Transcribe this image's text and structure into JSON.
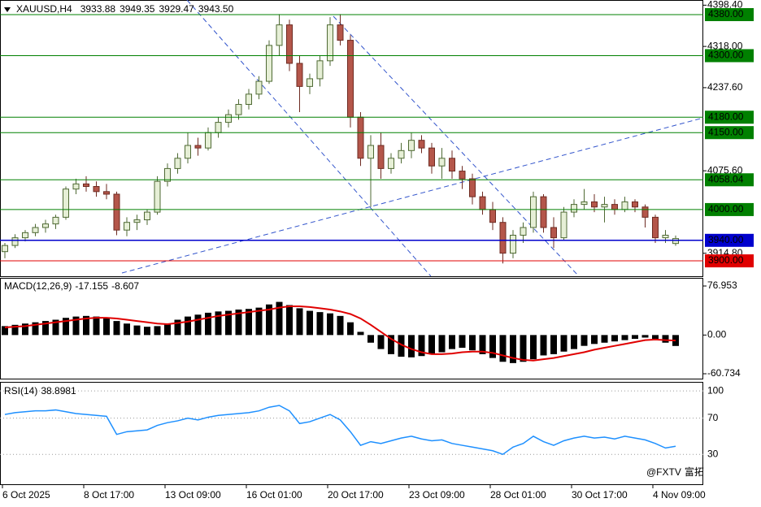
{
  "chart_data": [
    {
      "type": "candlestick",
      "title": "XAUUSD,H4",
      "ohlc_labels": [
        "3933.88",
        "3949.35",
        "3929.47",
        "3943.50"
      ],
      "categories": [
        "6 Oct 2025",
        null,
        null,
        null,
        null,
        null,
        null,
        null,
        "8 Oct 17:00",
        null,
        null,
        null,
        null,
        null,
        null,
        null,
        "13 Oct 09:00",
        null,
        null,
        null,
        null,
        null,
        null,
        null,
        "16 Oct 01:00",
        null,
        null,
        null,
        null,
        null,
        null,
        null,
        "20 Oct 17:00",
        null,
        null,
        null,
        null,
        null,
        null,
        null,
        "23 Oct 09:00",
        null,
        null,
        null,
        null,
        null,
        null,
        null,
        "28 Oct 01:00",
        null,
        null,
        null,
        null,
        null,
        null,
        null,
        "30 Oct 17:00",
        null,
        null,
        null,
        null,
        null,
        null,
        null,
        "4 Nov 09:00",
        null,
        null
      ],
      "open": [
        3918,
        3930,
        3945,
        3955,
        3965,
        3972,
        3985,
        4040,
        4050,
        4045,
        4035,
        4030,
        3960,
        3975,
        3980,
        3995,
        4055,
        4080,
        4100,
        4125,
        4120,
        4150,
        4170,
        4185,
        4205,
        4225,
        4250,
        4320,
        4360,
        4285,
        4240,
        4255,
        4290,
        4360,
        4330,
        4180,
        4100,
        4125,
        4080,
        4100,
        4115,
        4135,
        4120,
        4085,
        4100,
        4075,
        4060,
        4025,
        4000,
        3975,
        3915,
        3950,
        3965,
        4025,
        3965,
        3945,
        3995,
        4010,
        4015,
        4005,
        4010,
        4000,
        4015,
        4005,
        3985,
        3945,
        3933.88
      ],
      "high": [
        3935,
        3952,
        3960,
        3972,
        3980,
        3990,
        4045,
        4060,
        4065,
        4055,
        4050,
        4035,
        3985,
        3990,
        4000,
        4065,
        4090,
        4110,
        4150,
        4140,
        4160,
        4180,
        4195,
        4215,
        4235,
        4260,
        4330,
        4381,
        4370,
        4300,
        4265,
        4300,
        4375,
        4381,
        4340,
        4190,
        4145,
        4150,
        4110,
        4130,
        4150,
        4145,
        4130,
        4120,
        4115,
        4085,
        4070,
        4035,
        4015,
        3985,
        3960,
        3975,
        4035,
        4030,
        3985,
        4005,
        4020,
        4040,
        4030,
        4025,
        4020,
        4025,
        4020,
        4010,
        3990,
        3960,
        3949.35
      ],
      "low": [
        3905,
        3925,
        3938,
        3948,
        3955,
        3962,
        3980,
        4030,
        4035,
        4025,
        4020,
        3950,
        3948,
        3960,
        3970,
        3990,
        4045,
        4070,
        4090,
        4105,
        4115,
        4140,
        4160,
        4175,
        4195,
        4215,
        4245,
        4300,
        4270,
        4190,
        4225,
        4240,
        4280,
        4320,
        4160,
        4085,
        4005,
        4060,
        4070,
        4090,
        4100,
        4110,
        4070,
        4060,
        4060,
        4040,
        4010,
        3990,
        3960,
        3895,
        3905,
        3935,
        3955,
        3955,
        3925,
        3940,
        3985,
        4000,
        3995,
        3975,
        3990,
        3995,
        3995,
        3965,
        3935,
        3935,
        3929.47
      ],
      "close": [
        3930,
        3945,
        3955,
        3965,
        3972,
        3985,
        4040,
        4050,
        4045,
        4035,
        4030,
        3960,
        3975,
        3980,
        3995,
        4055,
        4080,
        4100,
        4125,
        4120,
        4150,
        4170,
        4185,
        4205,
        4225,
        4250,
        4320,
        4360,
        4285,
        4240,
        4255,
        4290,
        4360,
        4330,
        4180,
        4100,
        4125,
        4080,
        4100,
        4115,
        4135,
        4120,
        4085,
        4100,
        4075,
        4060,
        4025,
        4000,
        3975,
        3915,
        3950,
        3965,
        4025,
        3965,
        3945,
        3995,
        4010,
        4015,
        4005,
        4010,
        4000,
        4015,
        4005,
        3985,
        3945,
        3950,
        3943.5
      ],
      "up_color": "#e6efd6",
      "up_stroke": "#4f6a34",
      "down_color": "#b4564a",
      "down_stroke": "#6e2b22",
      "ylim": [
        3870,
        4408.5
      ],
      "yticks": [
        {
          "value": 4398.4,
          "label": "4398.40"
        },
        {
          "value": 4318,
          "label": "4318.00"
        },
        {
          "value": 4237.6,
          "label": "4237.60"
        },
        {
          "value": 4075.6,
          "label": "4075.60"
        },
        {
          "value": 3914.8,
          "label": "3914.80"
        }
      ],
      "price_levels": [
        {
          "value": 4380,
          "label": "4380.00",
          "color": "#008000",
          "text_color": "#000000"
        },
        {
          "value": 4300,
          "label": "4300.00",
          "color": "#008000",
          "text_color": "#000000"
        },
        {
          "value": 4180,
          "label": "4180.00",
          "color": "#008000",
          "text_color": "#000000"
        },
        {
          "value": 4150,
          "label": "4150.00",
          "color": "#008000",
          "text_color": "#000000"
        },
        {
          "value": 4058.04,
          "label": "4058.04",
          "color": "#008000",
          "text_color": "#000000"
        },
        {
          "value": 4000,
          "label": "4000.00",
          "color": "#008000",
          "text_color": "#000000"
        },
        {
          "value": 3940,
          "label": "3940.00",
          "color": "#0000cd",
          "text_color": "#ffffff"
        },
        {
          "value": 3900,
          "label": "3900.00",
          "color": "#e00000",
          "text_color": "#ffffff"
        }
      ],
      "watermark": [
        "@FXTV",
        "富拓"
      ]
    },
    {
      "type": "macd",
      "title": "MACD(12,26,9)",
      "macd": [
        14,
        16,
        18,
        20,
        22,
        24,
        27,
        29,
        30,
        29,
        27,
        22,
        18,
        15,
        13,
        14,
        18,
        24,
        29,
        32,
        35,
        37,
        38,
        40,
        41,
        43,
        48,
        52,
        47,
        42,
        38,
        36,
        34,
        30,
        20,
        5,
        -12,
        -22,
        -30,
        -34,
        -35,
        -33,
        -30,
        -27,
        -22,
        -20,
        -24,
        -30,
        -36,
        -42,
        -44,
        -42,
        -38,
        -32,
        -30,
        -26,
        -22,
        -17,
        -14,
        -12,
        -10,
        -8,
        -6,
        -4,
        -6,
        -12,
        -17.155
      ],
      "signal": [
        12,
        13,
        14,
        16,
        18,
        20,
        22,
        24,
        26,
        27,
        27,
        26,
        24,
        22,
        20,
        18,
        17,
        19,
        21,
        24,
        27,
        30,
        32,
        34,
        36,
        38,
        40,
        43,
        45,
        45,
        44,
        42,
        40,
        37,
        33,
        26,
        16,
        5,
        -6,
        -15,
        -22,
        -27,
        -30,
        -30,
        -29,
        -27,
        -26,
        -26,
        -28,
        -32,
        -36,
        -39,
        -40,
        -38,
        -36,
        -33,
        -30,
        -27,
        -23,
        -20,
        -17,
        -14,
        -11,
        -8,
        -7,
        -8,
        -8.607
      ],
      "macd_color": "#000000",
      "signal_color": "#e00000",
      "ylim": [
        -68.4,
        89.7
      ],
      "yticks": [
        76.953,
        {
          "value": 0,
          "label": "0.00"
        },
        -60.734
      ]
    },
    {
      "type": "rsi",
      "title": "RSI(14)",
      "values": [
        74,
        76,
        77,
        78,
        78,
        79,
        77,
        75,
        74,
        73,
        72,
        52,
        55,
        56,
        57,
        62,
        65,
        67,
        70,
        68,
        71,
        73,
        74,
        75,
        76,
        78,
        82,
        84,
        78,
        64,
        66,
        70,
        74,
        68,
        55,
        40,
        44,
        42,
        45,
        48,
        50,
        47,
        45,
        46,
        42,
        40,
        38,
        36,
        34,
        30,
        38,
        42,
        50,
        44,
        40,
        45,
        48,
        50,
        48,
        49,
        47,
        50,
        48,
        46,
        42,
        37,
        38.8981
      ],
      "color": "#1e90ff",
      "ylim": [
        -3,
        110
      ],
      "yticks": [
        100,
        70,
        30
      ]
    }
  ]
}
